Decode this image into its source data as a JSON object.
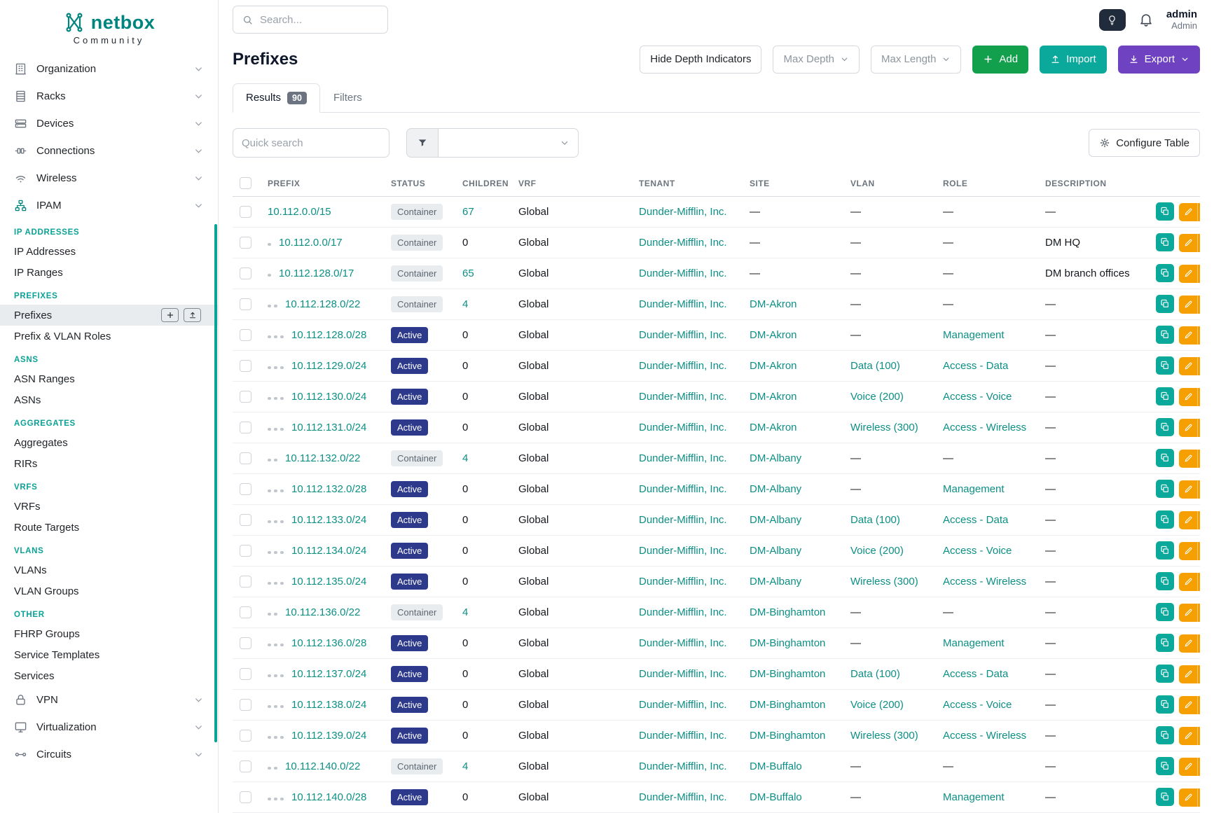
{
  "brand": {
    "logo_text": "netbox",
    "logo_subtext": "Community",
    "teal": "#00857e"
  },
  "sidebar": {
    "groups_top": [
      {
        "label": "Organization",
        "icon": "organization-icon"
      },
      {
        "label": "Racks",
        "icon": "racks-icon"
      },
      {
        "label": "Devices",
        "icon": "devices-icon"
      },
      {
        "label": "Connections",
        "icon": "connections-icon"
      },
      {
        "label": "Wireless",
        "icon": "wireless-icon"
      },
      {
        "label": "IPAM",
        "icon": "ipam-icon",
        "active": true
      }
    ],
    "sections": [
      {
        "title": "IP ADDRESSES",
        "items": [
          {
            "label": "IP Addresses"
          },
          {
            "label": "IP Ranges"
          }
        ]
      },
      {
        "title": "PREFIXES",
        "items": [
          {
            "label": "Prefixes",
            "active": true
          },
          {
            "label": "Prefix & VLAN Roles"
          }
        ]
      },
      {
        "title": "ASNS",
        "items": [
          {
            "label": "ASN Ranges"
          },
          {
            "label": "ASNs"
          }
        ]
      },
      {
        "title": "AGGREGATES",
        "items": [
          {
            "label": "Aggregates"
          },
          {
            "label": "RIRs"
          }
        ]
      },
      {
        "title": "VRFS",
        "items": [
          {
            "label": "VRFs"
          },
          {
            "label": "Route Targets"
          }
        ]
      },
      {
        "title": "VLANS",
        "items": [
          {
            "label": "VLANs"
          },
          {
            "label": "VLAN Groups"
          }
        ]
      },
      {
        "title": "OTHER",
        "items": [
          {
            "label": "FHRP Groups"
          },
          {
            "label": "Service Templates"
          },
          {
            "label": "Services"
          }
        ]
      }
    ],
    "groups_bottom": [
      {
        "label": "VPN",
        "icon": "vpn-icon"
      },
      {
        "label": "Virtualization",
        "icon": "virtualization-icon"
      },
      {
        "label": "Circuits",
        "icon": "circuits-icon"
      }
    ]
  },
  "header": {
    "search_placeholder": "Search...",
    "user_name": "admin",
    "user_role": "Admin"
  },
  "page": {
    "title": "Prefixes",
    "toolbar": {
      "hide_depth_label": "Hide Depth Indicators",
      "max_depth_label": "Max Depth",
      "max_length_label": "Max Length",
      "add_label": "Add",
      "import_label": "Import",
      "export_label": "Export"
    },
    "tabs": [
      {
        "label": "Results",
        "badge": "90",
        "active": true
      },
      {
        "label": "Filters"
      }
    ],
    "quick_search_placeholder": "Quick search",
    "configure_table_label": "Configure Table"
  },
  "table": {
    "columns": [
      "PREFIX",
      "STATUS",
      "CHILDREN",
      "VRF",
      "TENANT",
      "SITE",
      "VLAN",
      "ROLE",
      "DESCRIPTION"
    ],
    "rows": [
      {
        "depth": 0,
        "prefix": "10.112.0.0/15",
        "status": "Container",
        "children": "67",
        "vrf": "Global",
        "tenant": "Dunder-Mifflin, Inc.",
        "site": "—",
        "vlan": "—",
        "role": "—",
        "description": "—"
      },
      {
        "depth": 1,
        "prefix": "10.112.0.0/17",
        "status": "Container",
        "children": "0",
        "vrf": "Global",
        "tenant": "Dunder-Mifflin, Inc.",
        "site": "—",
        "vlan": "—",
        "role": "—",
        "description": "DM HQ"
      },
      {
        "depth": 1,
        "prefix": "10.112.128.0/17",
        "status": "Container",
        "children": "65",
        "vrf": "Global",
        "tenant": "Dunder-Mifflin, Inc.",
        "site": "—",
        "vlan": "—",
        "role": "—",
        "description": "DM branch offices"
      },
      {
        "depth": 2,
        "prefix": "10.112.128.0/22",
        "status": "Container",
        "children": "4",
        "vrf": "Global",
        "tenant": "Dunder-Mifflin, Inc.",
        "site": "DM-Akron",
        "vlan": "—",
        "role": "—",
        "description": "—"
      },
      {
        "depth": 3,
        "prefix": "10.112.128.0/28",
        "status": "Active",
        "children": "0",
        "vrf": "Global",
        "tenant": "Dunder-Mifflin, Inc.",
        "site": "DM-Akron",
        "vlan": "—",
        "role": "Management",
        "description": "—"
      },
      {
        "depth": 3,
        "prefix": "10.112.129.0/24",
        "status": "Active",
        "children": "0",
        "vrf": "Global",
        "tenant": "Dunder-Mifflin, Inc.",
        "site": "DM-Akron",
        "vlan": "Data (100)",
        "role": "Access - Data",
        "description": "—"
      },
      {
        "depth": 3,
        "prefix": "10.112.130.0/24",
        "status": "Active",
        "children": "0",
        "vrf": "Global",
        "tenant": "Dunder-Mifflin, Inc.",
        "site": "DM-Akron",
        "vlan": "Voice (200)",
        "role": "Access - Voice",
        "description": "—"
      },
      {
        "depth": 3,
        "prefix": "10.112.131.0/24",
        "status": "Active",
        "children": "0",
        "vrf": "Global",
        "tenant": "Dunder-Mifflin, Inc.",
        "site": "DM-Akron",
        "vlan": "Wireless (300)",
        "role": "Access - Wireless",
        "description": "—"
      },
      {
        "depth": 2,
        "prefix": "10.112.132.0/22",
        "status": "Container",
        "children": "4",
        "vrf": "Global",
        "tenant": "Dunder-Mifflin, Inc.",
        "site": "DM-Albany",
        "vlan": "—",
        "role": "—",
        "description": "—"
      },
      {
        "depth": 3,
        "prefix": "10.112.132.0/28",
        "status": "Active",
        "children": "0",
        "vrf": "Global",
        "tenant": "Dunder-Mifflin, Inc.",
        "site": "DM-Albany",
        "vlan": "—",
        "role": "Management",
        "description": "—"
      },
      {
        "depth": 3,
        "prefix": "10.112.133.0/24",
        "status": "Active",
        "children": "0",
        "vrf": "Global",
        "tenant": "Dunder-Mifflin, Inc.",
        "site": "DM-Albany",
        "vlan": "Data (100)",
        "role": "Access - Data",
        "description": "—"
      },
      {
        "depth": 3,
        "prefix": "10.112.134.0/24",
        "status": "Active",
        "children": "0",
        "vrf": "Global",
        "tenant": "Dunder-Mifflin, Inc.",
        "site": "DM-Albany",
        "vlan": "Voice (200)",
        "role": "Access - Voice",
        "description": "—"
      },
      {
        "depth": 3,
        "prefix": "10.112.135.0/24",
        "status": "Active",
        "children": "0",
        "vrf": "Global",
        "tenant": "Dunder-Mifflin, Inc.",
        "site": "DM-Albany",
        "vlan": "Wireless (300)",
        "role": "Access - Wireless",
        "description": "—"
      },
      {
        "depth": 2,
        "prefix": "10.112.136.0/22",
        "status": "Container",
        "children": "4",
        "vrf": "Global",
        "tenant": "Dunder-Mifflin, Inc.",
        "site": "DM-Binghamton",
        "vlan": "—",
        "role": "—",
        "description": "—"
      },
      {
        "depth": 3,
        "prefix": "10.112.136.0/28",
        "status": "Active",
        "children": "0",
        "vrf": "Global",
        "tenant": "Dunder-Mifflin, Inc.",
        "site": "DM-Binghamton",
        "vlan": "—",
        "role": "Management",
        "description": "—"
      },
      {
        "depth": 3,
        "prefix": "10.112.137.0/24",
        "status": "Active",
        "children": "0",
        "vrf": "Global",
        "tenant": "Dunder-Mifflin, Inc.",
        "site": "DM-Binghamton",
        "vlan": "Data (100)",
        "role": "Access - Data",
        "description": "—"
      },
      {
        "depth": 3,
        "prefix": "10.112.138.0/24",
        "status": "Active",
        "children": "0",
        "vrf": "Global",
        "tenant": "Dunder-Mifflin, Inc.",
        "site": "DM-Binghamton",
        "vlan": "Voice (200)",
        "role": "Access - Voice",
        "description": "—"
      },
      {
        "depth": 3,
        "prefix": "10.112.139.0/24",
        "status": "Active",
        "children": "0",
        "vrf": "Global",
        "tenant": "Dunder-Mifflin, Inc.",
        "site": "DM-Binghamton",
        "vlan": "Wireless (300)",
        "role": "Access - Wireless",
        "description": "—"
      },
      {
        "depth": 2,
        "prefix": "10.112.140.0/22",
        "status": "Container",
        "children": "4",
        "vrf": "Global",
        "tenant": "Dunder-Mifflin, Inc.",
        "site": "DM-Buffalo",
        "vlan": "—",
        "role": "—",
        "description": "—"
      },
      {
        "depth": 3,
        "prefix": "10.112.140.0/28",
        "status": "Active",
        "children": "0",
        "vrf": "Global",
        "tenant": "Dunder-Mifflin, Inc.",
        "site": "DM-Buffalo",
        "vlan": "—",
        "role": "Management",
        "description": "—"
      }
    ]
  }
}
